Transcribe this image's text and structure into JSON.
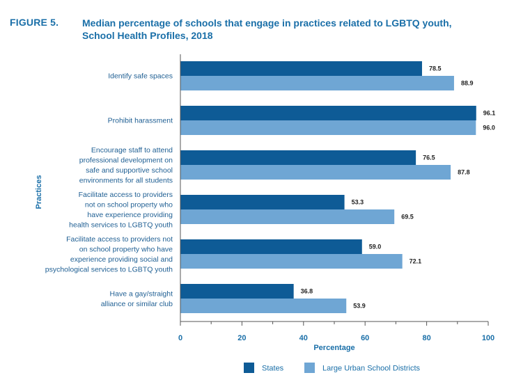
{
  "figure": {
    "label": "FIGURE 5.",
    "title_line1": "Median percentage of schools that engage in practices related to LGBTQ youth,",
    "title_line2": "School Health Profiles, 2018"
  },
  "colors": {
    "states": "#0e5b96",
    "districts": "#6fa6d4",
    "text_blue": "#1a6fa8"
  },
  "chart_data": {
    "type": "bar",
    "orientation": "horizontal",
    "categories": [
      [
        "Identify safe spaces"
      ],
      [
        "Prohibit harassment"
      ],
      [
        "Encourage staff to attend",
        "professional development on",
        "safe and supportive school",
        "environments for all students"
      ],
      [
        "Facilitate access to providers",
        "not on school property who",
        "have experience providing",
        "health services to LGBTQ youth"
      ],
      [
        "Facilitate access to providers not",
        "on school property who have",
        "experience providing social and",
        "psychological services to LGBTQ youth"
      ],
      [
        "Have a gay/straight",
        "alliance or similar club"
      ]
    ],
    "series": [
      {
        "name": "States",
        "values": [
          78.5,
          96.1,
          76.5,
          53.3,
          59.0,
          36.8
        ],
        "labels": [
          "78.5",
          "96.1",
          "76.5",
          "53.3",
          "59.0",
          "36.8"
        ]
      },
      {
        "name": "Large Urban School Districts",
        "values": [
          88.9,
          96.0,
          87.8,
          69.5,
          72.1,
          53.9
        ],
        "labels": [
          "88.9",
          "96.0",
          "87.8",
          "69.5",
          "72.1",
          "53.9"
        ]
      }
    ],
    "xlabel": "Percentage",
    "ylabel": "Practices",
    "xlim": [
      0,
      100
    ],
    "xticks": [
      0,
      20,
      40,
      60,
      80,
      100
    ],
    "legend_position": "bottom",
    "grid": false
  }
}
